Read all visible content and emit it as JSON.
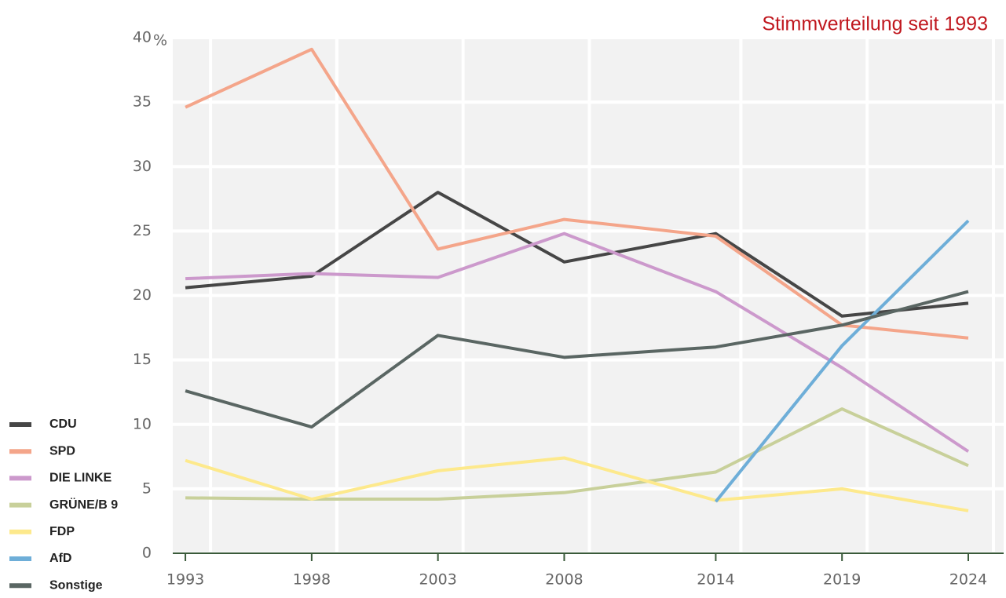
{
  "chart_data": {
    "type": "line",
    "title": "Stimmverteilung seit 1993",
    "y_unit": "%",
    "x": [
      1993,
      1998,
      2003,
      2008,
      2014,
      2019,
      2024
    ],
    "xlim": [
      1992.5,
      2025.4
    ],
    "xticks": [
      1993,
      1998,
      2003,
      2008,
      2014,
      2019,
      2024
    ],
    "ylim": [
      0,
      40
    ],
    "yticks": [
      0,
      5,
      10,
      15,
      20,
      25,
      30,
      35,
      40
    ],
    "grid": true,
    "legend": "bottom-left",
    "series": [
      {
        "name": "CDU",
        "color": "#464646",
        "values": [
          20.6,
          21.5,
          28.0,
          22.6,
          24.8,
          18.4,
          19.4
        ]
      },
      {
        "name": "SPD",
        "color": "#f4a58a",
        "values": [
          34.6,
          39.1,
          23.6,
          25.9,
          24.6,
          17.7,
          16.7
        ]
      },
      {
        "name": "DIE LINKE",
        "color": "#cc99cc",
        "values": [
          21.3,
          21.7,
          21.4,
          24.8,
          20.3,
          14.4,
          7.9
        ]
      },
      {
        "name": "GRÜNE/B 9",
        "color": "#c8d09a",
        "values": [
          4.3,
          4.2,
          4.2,
          4.7,
          6.3,
          11.2,
          6.8
        ]
      },
      {
        "name": "FDP",
        "color": "#fde98c",
        "values": [
          7.2,
          4.2,
          6.4,
          7.4,
          4.1,
          5.0,
          3.3
        ]
      },
      {
        "name": "AfD",
        "color": "#6eaed8",
        "values": [
          null,
          null,
          null,
          null,
          4.0,
          16.1,
          25.8
        ]
      },
      {
        "name": "Sonstige",
        "color": "#5a6663",
        "values": [
          12.6,
          9.8,
          16.9,
          15.2,
          16.0,
          17.7,
          20.3
        ]
      }
    ]
  }
}
